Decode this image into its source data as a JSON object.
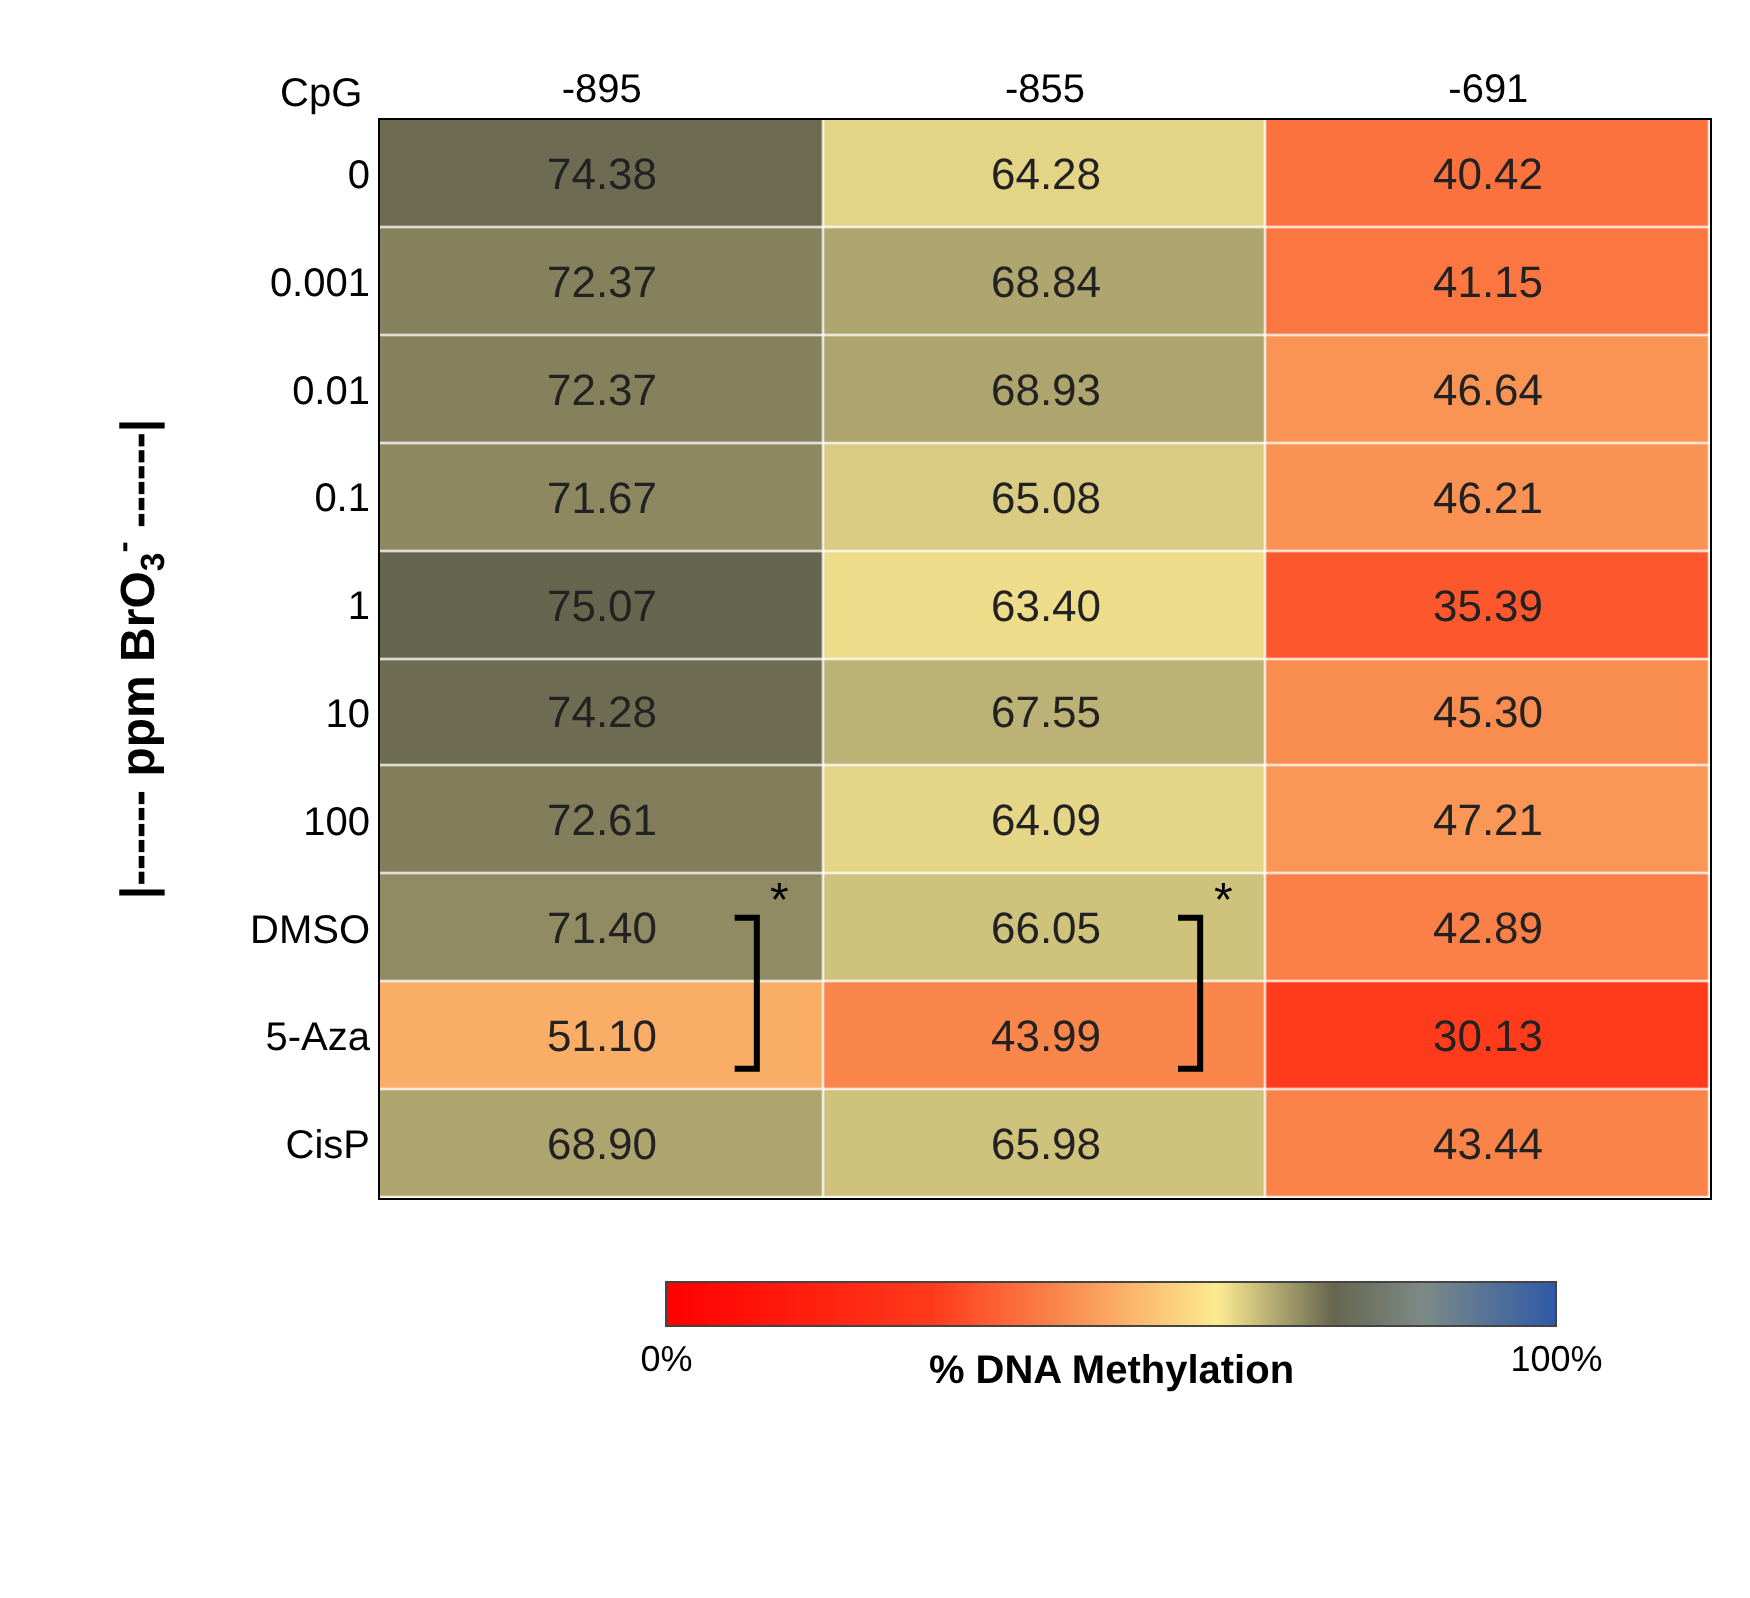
{
  "chart_data": {
    "type": "heatmap",
    "categories": [
      "-895",
      "-855",
      "-691"
    ],
    "y_categories": [
      "0",
      "0.001",
      "0.01",
      "0.1",
      "1",
      "10",
      "100",
      "DMSO",
      "5-Aza",
      "CisP"
    ],
    "ylabel": "|------ ppm BrO$_{3}$$^{-}$ ------|",
    "clabel": "% DNA Methylation",
    "clim": [
      0,
      100
    ],
    "cticks": [
      {
        "value": 0,
        "label": "0%"
      },
      {
        "value": 100,
        "label": "100%"
      }
    ],
    "cells": [
      [
        74.38,
        64.28,
        40.42
      ],
      [
        72.37,
        68.84,
        41.15
      ],
      [
        72.37,
        68.93,
        46.64
      ],
      [
        71.67,
        65.08,
        46.21
      ],
      [
        75.07,
        63.4,
        35.39
      ],
      [
        74.28,
        67.55,
        45.3
      ],
      [
        72.61,
        64.09,
        47.21
      ],
      [
        71.4,
        66.05,
        42.89
      ],
      [
        51.1,
        43.99,
        30.13
      ],
      [
        68.9,
        65.98,
        43.44
      ]
    ],
    "cell_labels": [
      [
        "74.38",
        "64.28",
        "40.42"
      ],
      [
        "72.37",
        "68.84",
        "41.15"
      ],
      [
        "72.37",
        "68.93",
        "46.64"
      ],
      [
        "71.67",
        "65.08",
        "46.21"
      ],
      [
        "75.07",
        "63.40",
        "35.39"
      ],
      [
        "74.28",
        "67.55",
        "45.30"
      ],
      [
        "72.61",
        "64.09",
        "47.21"
      ],
      [
        "71.40",
        "66.05",
        "42.89"
      ],
      [
        "51.10",
        "43.99",
        "30.13"
      ],
      [
        "68.90",
        "65.98",
        "43.44"
      ]
    ],
    "annotations": [
      "CpG",
      "*",
      "*"
    ]
  }
}
